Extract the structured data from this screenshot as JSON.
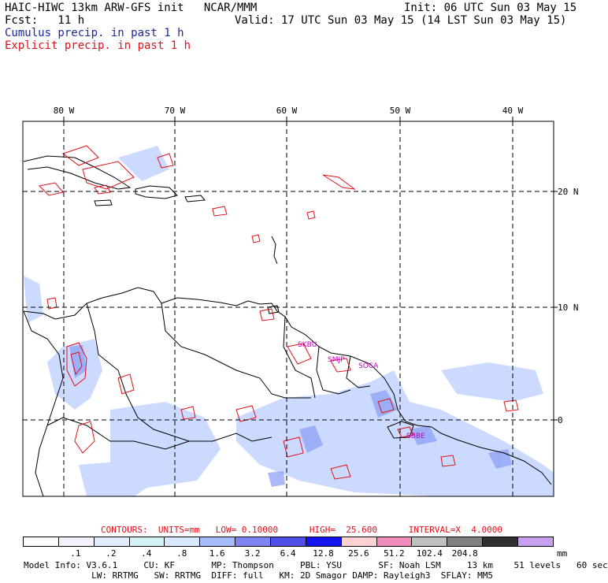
{
  "header": {
    "title": "HAIC-HIWC 13km ARW-GFS init   NCAR/MMM",
    "init": "Init: 06 UTC Sun 03 May 15",
    "fcst": "Fcst:   11 h",
    "valid": "Valid: 17 UTC Sun 03 May 15 (14 LST Sun 03 May 15)",
    "cumulus": "Cumulus precip. in past 1 h",
    "explicit": "Explicit precip. in past 1 h"
  },
  "map": {
    "lon_labels": [
      "80 W",
      "70 W",
      "60 W",
      "50 W",
      "40 W"
    ],
    "lat_labels": [
      "20 N",
      "10 N",
      "0"
    ],
    "stations": [
      "SKBU",
      "SMJP",
      "SOCA",
      "SBBE"
    ]
  },
  "legend": {
    "contours": "CONTOURS:  UNITS=mm   LOW= 0.10000      HIGH=  25.600      INTERVAL=X  4.0000",
    "levels": [
      ".1",
      ".2",
      ".4",
      ".8",
      "1.6",
      "3.2",
      "6.4",
      "12.8",
      "25.6",
      "51.2",
      "102.4",
      "204.8"
    ],
    "units": "mm",
    "colors": [
      "#ffffff",
      "#f2f2ff",
      "#e2ecff",
      "#d2f2f8",
      "#d8e8ff",
      "#a6baff",
      "#7e84f2",
      "#4e4ee8",
      "#1414f0",
      "#fcd2d2",
      "#f08cbc",
      "#c0c0c0",
      "#808080",
      "#303030",
      "#c8a0f0"
    ]
  },
  "model_info": {
    "line1": "Model Info: V3.6.1     CU: KF       MP: Thompson     PBL: YSU       SF: Noah LSM     13 km    51 levels   60 sec",
    "line2": "             LW: RRTMG   SW: RRTMG  DIFF: full   KM: 2D Smagor DAMP: Rayleigh3  SFLAY: MM5"
  }
}
